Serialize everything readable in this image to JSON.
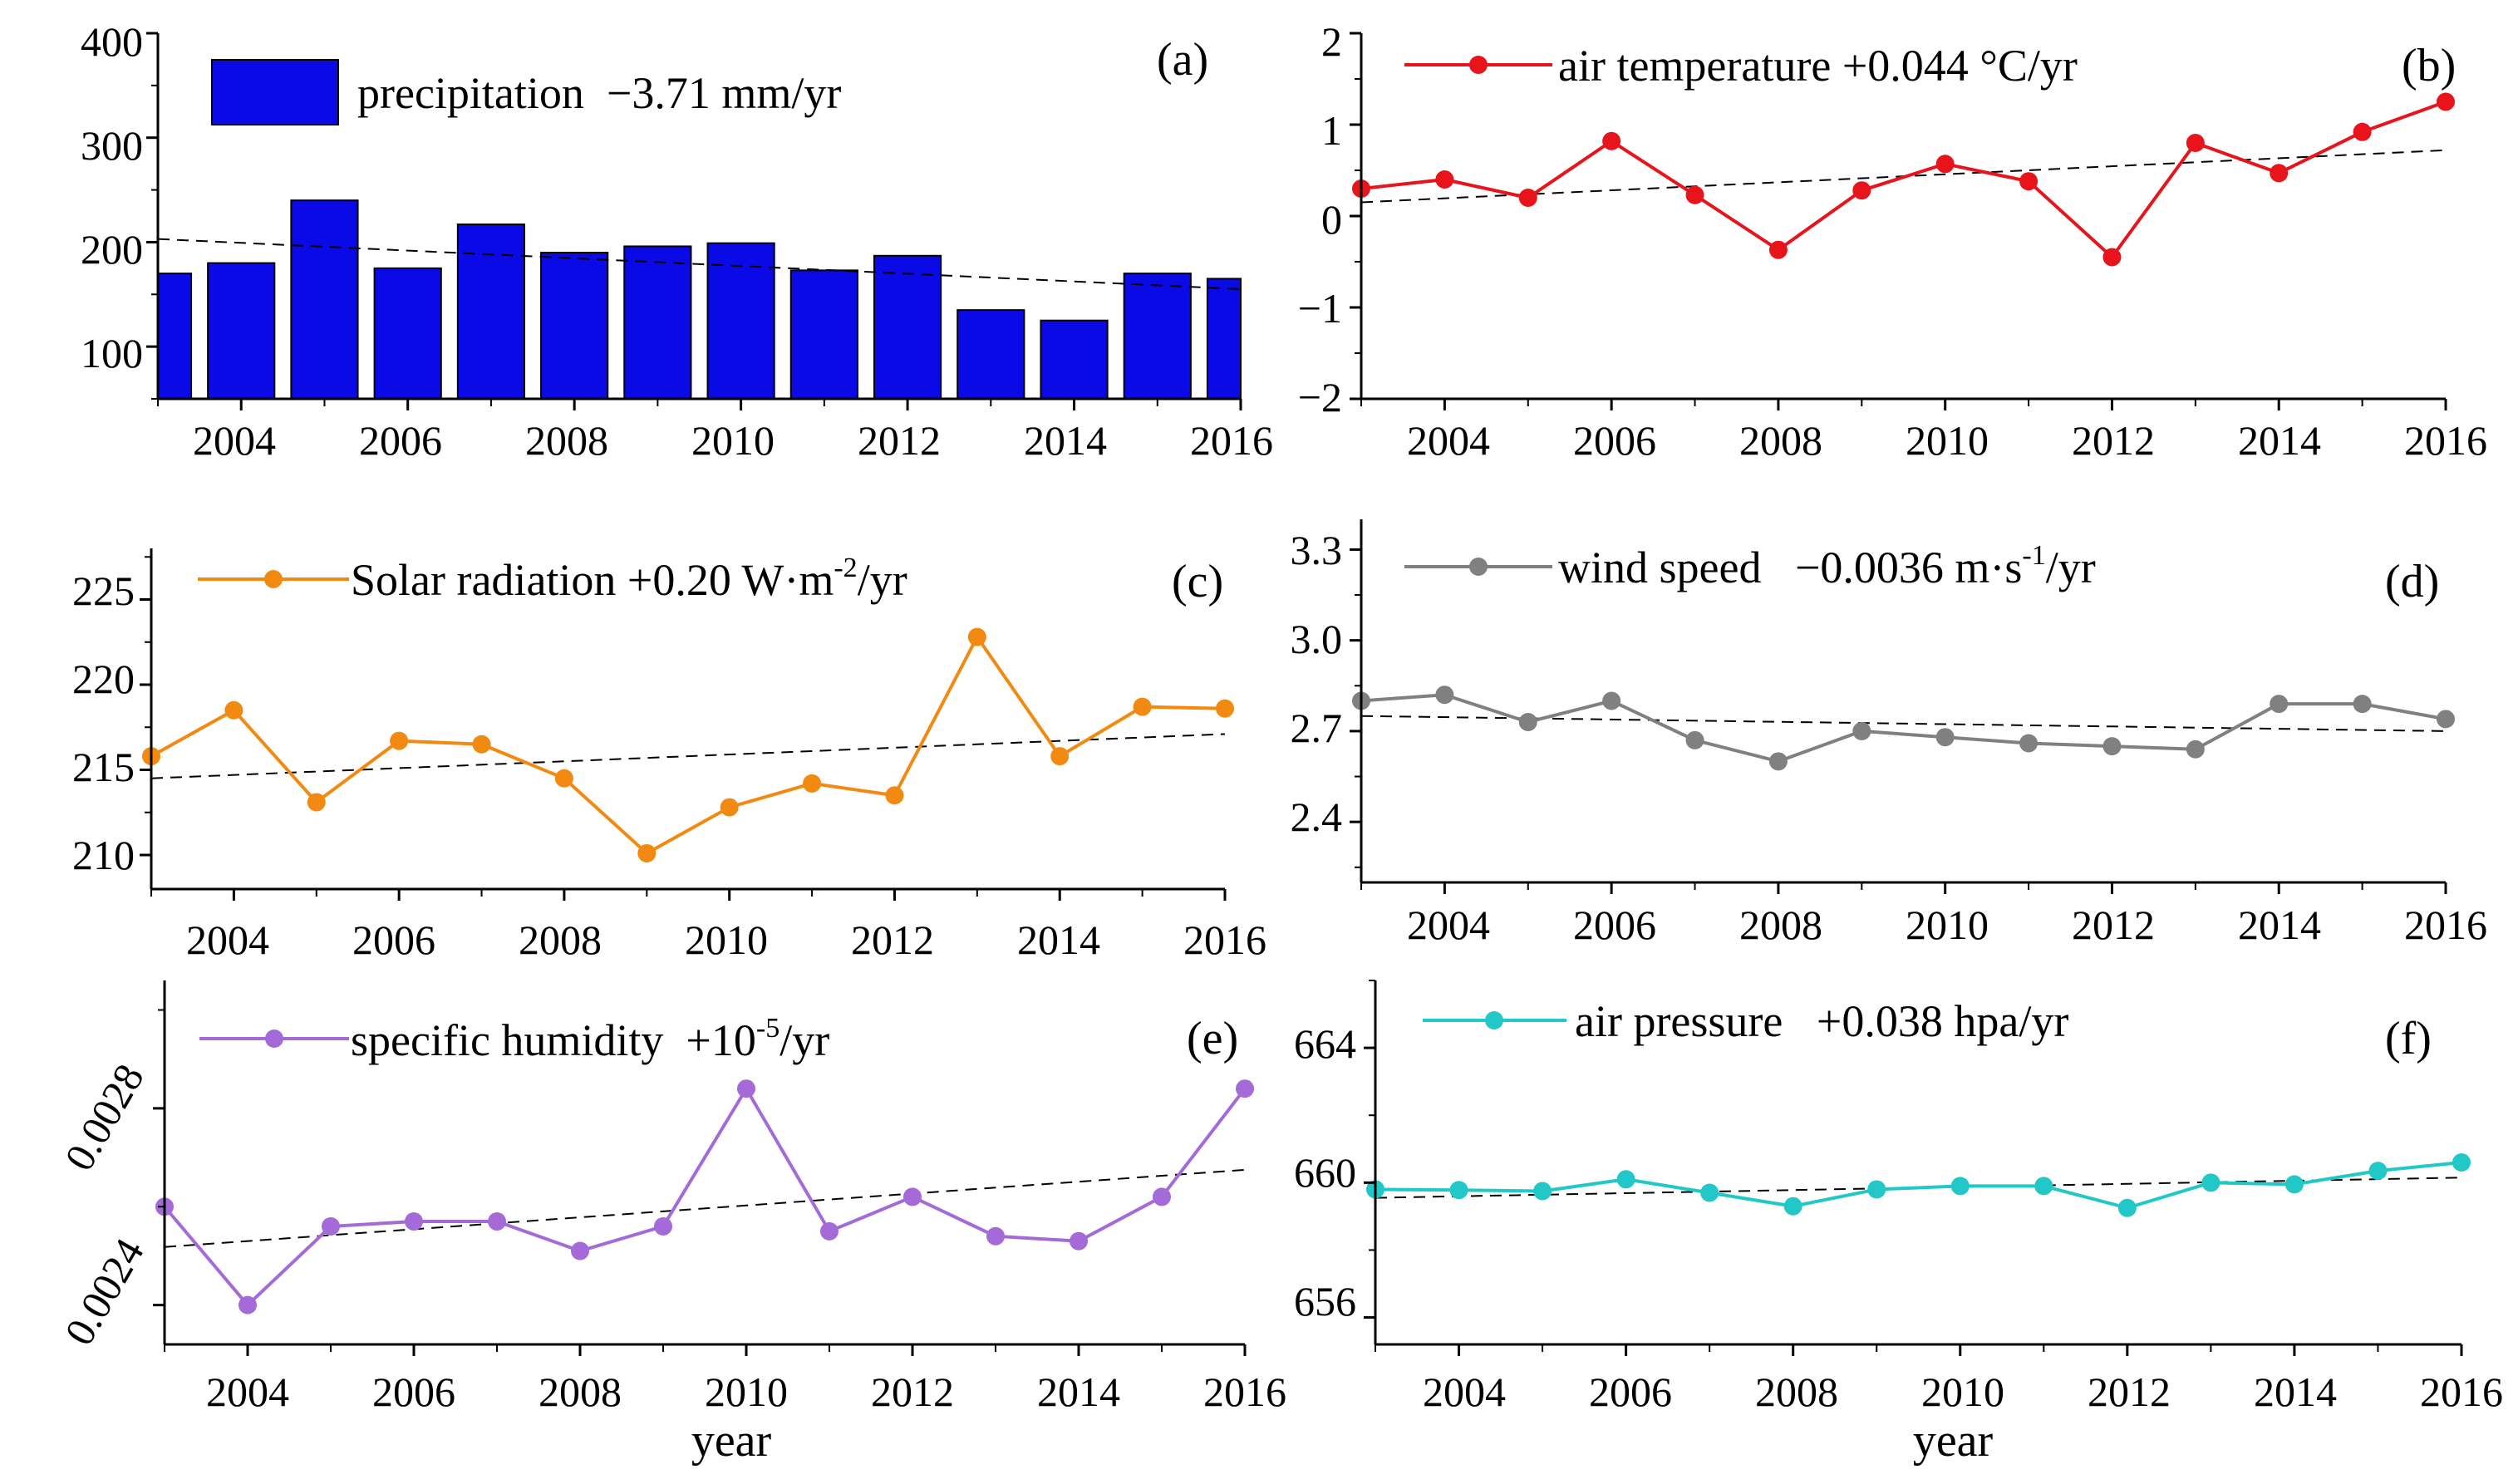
{
  "chart_data": [
    {
      "id": "a",
      "type": "bar",
      "panel_label": "(a)",
      "legend": {
        "name": "precipitation",
        "trend": "−3.71 mm/yr",
        "color": "#0a0ae6"
      },
      "x": [
        2003,
        2004,
        2005,
        2006,
        2007,
        2008,
        2009,
        2010,
        2011,
        2012,
        2013,
        2014,
        2015,
        2016
      ],
      "values": [
        170,
        180,
        240,
        175,
        217,
        190,
        196,
        199,
        173,
        187,
        135,
        125,
        170,
        165
      ],
      "trendline": [
        203,
        155
      ],
      "xlim": [
        2003,
        2016
      ],
      "ylim": [
        50,
        400
      ],
      "yticks": [
        "100",
        "200",
        "300",
        "400"
      ],
      "ytick_values": [
        100,
        200,
        300,
        400
      ],
      "xticks": [
        "2004",
        "2006",
        "2008",
        "2010",
        "2012",
        "2014",
        "2016"
      ],
      "xlabel": ""
    },
    {
      "id": "b",
      "type": "line",
      "panel_label": "(b)",
      "legend": {
        "name": "air temperature",
        "trend": "+0.044 °C/yr",
        "color": "#e8141c"
      },
      "x": [
        2003,
        2004,
        2005,
        2006,
        2007,
        2008,
        2009,
        2010,
        2011,
        2012,
        2013,
        2014,
        2015,
        2016
      ],
      "values": [
        0.3,
        0.4,
        0.2,
        0.82,
        0.23,
        -0.37,
        0.28,
        0.57,
        0.38,
        -0.45,
        0.8,
        0.47,
        0.92,
        1.25
      ],
      "trendline": [
        0.15,
        0.72
      ],
      "xlim": [
        2003,
        2016
      ],
      "ylim": [
        -2,
        2
      ],
      "yticks": [
        "−2",
        "−1",
        "0",
        "1",
        "2"
      ],
      "ytick_values": [
        -2,
        -1,
        0,
        1,
        2
      ],
      "xticks": [
        "2004",
        "2006",
        "2008",
        "2010",
        "2012",
        "2014",
        "2016"
      ],
      "xlabel": ""
    },
    {
      "id": "c",
      "type": "line",
      "panel_label": "(c)",
      "legend": {
        "name": "Solar radiation",
        "trend_pre": "+0.20 W·m",
        "sup": "-2",
        "trend_post": "/yr",
        "color": "#f28a12"
      },
      "x": [
        2003,
        2004,
        2005,
        2006,
        2007,
        2008,
        2009,
        2010,
        2011,
        2012,
        2013,
        2014,
        2015,
        2016
      ],
      "values": [
        215.8,
        218.5,
        213.1,
        216.7,
        216.5,
        214.5,
        210.1,
        212.8,
        214.2,
        213.5,
        222.8,
        215.8,
        218.7,
        218.6
      ],
      "trendline": [
        214.5,
        217.1
      ],
      "xlim": [
        2003,
        2016
      ],
      "ylim": [
        208,
        228
      ],
      "yticks": [
        "210",
        "215",
        "220",
        "225"
      ],
      "ytick_values": [
        210,
        215,
        220,
        225
      ],
      "xticks": [
        "2004",
        "2006",
        "2008",
        "2010",
        "2012",
        "2014",
        "2016"
      ],
      "xlabel": ""
    },
    {
      "id": "d",
      "type": "line",
      "panel_label": "(d)",
      "legend": {
        "name": "wind speed",
        "trend_pre": "−0.0036 m·s",
        "sup": "-1",
        "trend_post": "/yr",
        "color": "#808080"
      },
      "x": [
        2003,
        2004,
        2005,
        2006,
        2007,
        2008,
        2009,
        2010,
        2011,
        2012,
        2013,
        2014,
        2015,
        2016
      ],
      "values": [
        2.8,
        2.82,
        2.73,
        2.8,
        2.67,
        2.6,
        2.7,
        2.68,
        2.66,
        2.65,
        2.64,
        2.79,
        2.79,
        2.74
      ],
      "trendline": [
        2.75,
        2.7
      ],
      "xlim": [
        2003,
        2016
      ],
      "ylim": [
        2.2,
        3.4
      ],
      "yticks": [
        "2.4",
        "2.7",
        "3.0",
        "3.3"
      ],
      "ytick_values": [
        2.4,
        2.7,
        3.0,
        3.3
      ],
      "xticks": [
        "2004",
        "2006",
        "2008",
        "2010",
        "2012",
        "2014",
        "2016"
      ],
      "xlabel": ""
    },
    {
      "id": "e",
      "type": "line",
      "panel_label": "(e)",
      "legend": {
        "name": "specific humidity",
        "trend_pre": "+10",
        "sup": "-5",
        "trend_post": "/yr",
        "color": "#a46ad8"
      },
      "x": [
        2003,
        2004,
        2005,
        2006,
        2007,
        2008,
        2009,
        2010,
        2011,
        2012,
        2013,
        2014,
        2015,
        2016
      ],
      "values": [
        0.0026,
        0.0024,
        0.00256,
        0.00257,
        0.00257,
        0.00251,
        0.00256,
        0.00284,
        0.00255,
        0.00262,
        0.00254,
        0.00253,
        0.00262,
        0.00284
      ],
      "trendline": [
        0.002518,
        0.002675
      ],
      "xlim": [
        2003,
        2016
      ],
      "ylim": [
        0.00232,
        0.00306
      ],
      "yticks": [
        "0.0024",
        "0.0028"
      ],
      "ytick_values": [
        0.0024,
        0.0028
      ],
      "xticks": [
        "2004",
        "2006",
        "2008",
        "2010",
        "2012",
        "2014",
        "2016"
      ],
      "xlabel": "year"
    },
    {
      "id": "f",
      "type": "line",
      "panel_label": "(f)",
      "legend": {
        "name": "air pressure",
        "trend": "+0.038 hpa/yr",
        "color": "#22c7c7"
      },
      "x": [
        2003,
        2004,
        2005,
        2006,
        2007,
        2008,
        2009,
        2010,
        2011,
        2012,
        2013,
        2014,
        2015,
        2016
      ],
      "values": [
        659.8,
        659.78,
        659.75,
        660.1,
        659.7,
        659.3,
        659.8,
        659.9,
        659.9,
        659.25,
        660.0,
        659.95,
        660.35,
        660.6
      ],
      "trendline": [
        659.55,
        660.15
      ],
      "xlim": [
        2003,
        2016
      ],
      "ylim": [
        655.2,
        666
      ],
      "yticks": [
        "656",
        "660",
        "664"
      ],
      "ytick_values": [
        656,
        660,
        664
      ],
      "xticks": [
        "2004",
        "2006",
        "2008",
        "2010",
        "2012",
        "2014",
        "2016"
      ],
      "xlabel": "year"
    }
  ]
}
